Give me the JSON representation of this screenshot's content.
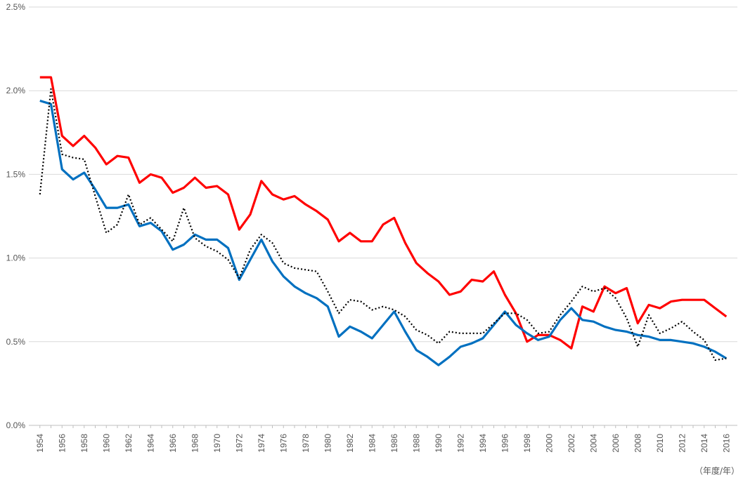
{
  "chart_data": {
    "type": "line",
    "title": "",
    "xlabel": "",
    "ylabel": "",
    "unit_label": "（年度/年）",
    "ylim": [
      0,
      2.5
    ],
    "y_ticks": [
      "0.0%",
      "0.5%",
      "1.0%",
      "1.5%",
      "2.0%",
      "2.5%"
    ],
    "y_tick_values": [
      0,
      0.5,
      1.0,
      1.5,
      2.0,
      2.5
    ],
    "grid": true,
    "x": [
      1954,
      1955,
      1956,
      1957,
      1958,
      1959,
      1960,
      1961,
      1962,
      1963,
      1964,
      1965,
      1966,
      1967,
      1968,
      1969,
      1970,
      1971,
      1972,
      1973,
      1974,
      1975,
      1976,
      1977,
      1978,
      1979,
      1980,
      1981,
      1982,
      1983,
      1984,
      1985,
      1986,
      1987,
      1988,
      1989,
      1990,
      1991,
      1992,
      1993,
      1994,
      1995,
      1996,
      1997,
      1998,
      1999,
      2000,
      2001,
      2002,
      2003,
      2004,
      2005,
      2006,
      2007,
      2008,
      2009,
      2010,
      2011,
      2012,
      2013,
      2014,
      2015,
      2016
    ],
    "x_tick_labels": [
      "1954",
      "1956",
      "1958",
      "1960",
      "1962",
      "1964",
      "1966",
      "1968",
      "1970",
      "1972",
      "1974",
      "1976",
      "1978",
      "1980",
      "1982",
      "1984",
      "1986",
      "1988",
      "1990",
      "1992",
      "1994",
      "1996",
      "1998",
      "2000",
      "2002",
      "2004",
      "2006",
      "2008",
      "2010",
      "2012",
      "2014",
      "2016"
    ],
    "series": [
      {
        "color": "#ff0000",
        "style": "solid",
        "values": [
          2.08,
          2.08,
          1.73,
          1.67,
          1.73,
          1.66,
          1.56,
          1.61,
          1.6,
          1.45,
          1.5,
          1.48,
          1.39,
          1.42,
          1.48,
          1.42,
          1.43,
          1.38,
          1.17,
          1.26,
          1.46,
          1.38,
          1.35,
          1.37,
          1.32,
          1.28,
          1.23,
          1.1,
          1.15,
          1.1,
          1.1,
          1.2,
          1.24,
          1.09,
          0.97,
          0.91,
          0.86,
          0.78,
          0.8,
          0.87,
          0.86,
          0.92,
          0.78,
          0.67,
          0.5,
          0.54,
          0.54,
          0.51,
          0.46,
          0.71,
          0.68,
          0.83,
          0.79,
          0.82,
          0.61,
          0.72,
          0.7,
          0.74,
          0.75,
          0.75,
          0.75,
          0.7,
          0.65
        ]
      },
      {
        "color": "#0070c0",
        "style": "solid",
        "values": [
          1.94,
          1.92,
          1.53,
          1.47,
          1.51,
          1.41,
          1.3,
          1.3,
          1.32,
          1.19,
          1.21,
          1.16,
          1.05,
          1.08,
          1.14,
          1.11,
          1.11,
          1.06,
          0.87,
          0.99,
          1.11,
          0.98,
          0.89,
          0.83,
          0.79,
          0.76,
          0.71,
          0.53,
          0.59,
          0.56,
          0.52,
          0.6,
          0.68,
          0.56,
          0.45,
          0.41,
          0.36,
          0.41,
          0.47,
          0.49,
          0.52,
          0.6,
          0.68,
          0.6,
          0.55,
          0.51,
          0.53,
          0.63,
          0.7,
          0.63,
          0.62,
          0.59,
          0.57,
          0.56,
          0.54,
          0.53,
          0.51,
          0.51,
          0.5,
          0.49,
          0.47,
          0.44,
          0.4
        ]
      },
      {
        "color": "#000000",
        "style": "dotted",
        "values": [
          1.38,
          2.01,
          1.62,
          1.6,
          1.59,
          1.37,
          1.15,
          1.2,
          1.38,
          1.2,
          1.24,
          1.17,
          1.1,
          1.3,
          1.12,
          1.07,
          1.04,
          0.99,
          0.88,
          1.05,
          1.14,
          1.09,
          0.97,
          0.94,
          0.93,
          0.92,
          0.8,
          0.67,
          0.75,
          0.74,
          0.69,
          0.71,
          0.69,
          0.65,
          0.57,
          0.54,
          0.49,
          0.56,
          0.55,
          0.55,
          0.55,
          0.61,
          0.67,
          0.67,
          0.63,
          0.55,
          0.56,
          0.66,
          0.74,
          0.83,
          0.8,
          0.82,
          0.76,
          0.64,
          0.47,
          0.66,
          0.55,
          0.58,
          0.62,
          0.56,
          0.51,
          0.39,
          0.4
        ]
      }
    ]
  }
}
